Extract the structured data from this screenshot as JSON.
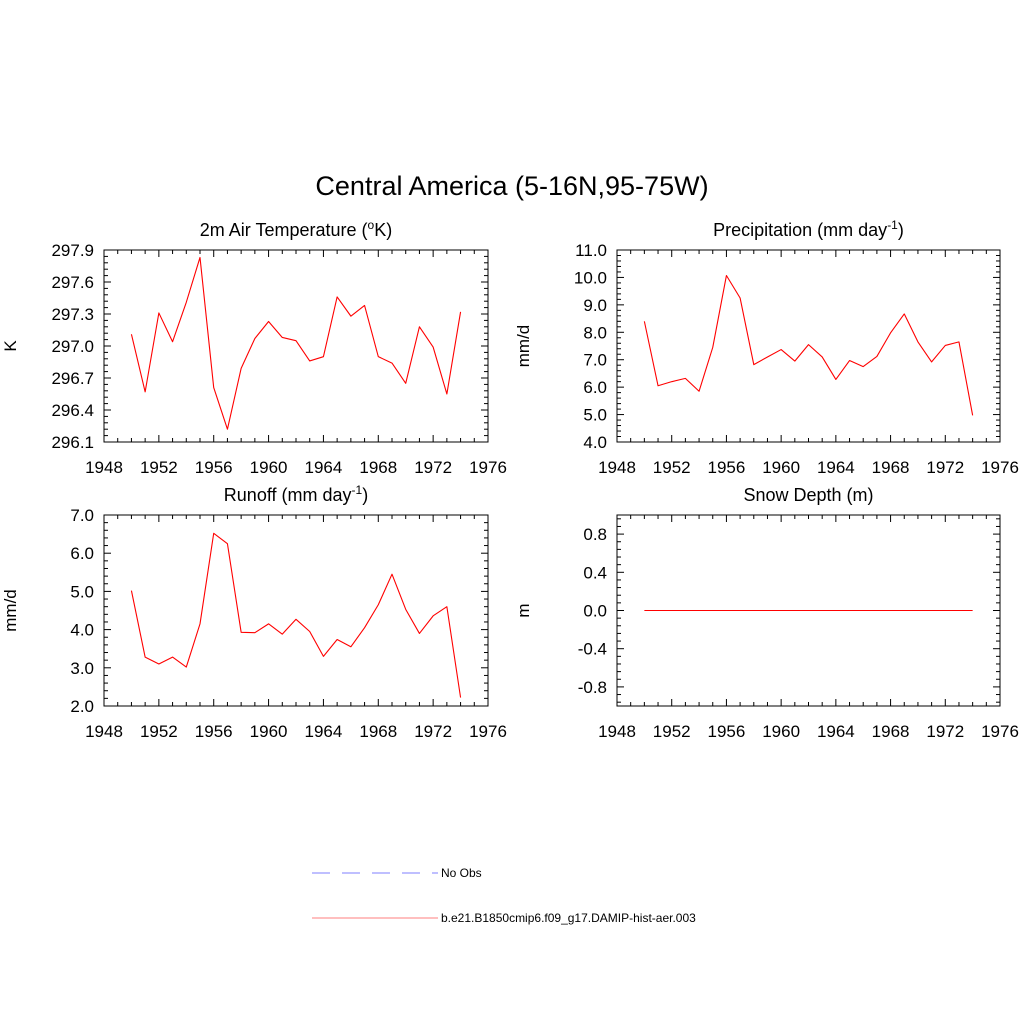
{
  "figure": {
    "title": "Central America (5-16N,95-75W)"
  },
  "legend": {
    "items": [
      {
        "label": "No Obs",
        "color": "#9999ff",
        "style": "dashed"
      },
      {
        "label": "b.e21.B1850cmip6.f09_g17.DAMIP-hist-aer.003",
        "color": "#ff9999",
        "style": "solid"
      }
    ]
  },
  "chart_data": [
    {
      "type": "line",
      "title": "2m Air Temperature (",
      "title_sup": "o",
      "title_after": "K)",
      "ylabel": "K",
      "xlim": [
        1948,
        1976
      ],
      "ylim": [
        296.1,
        297.9
      ],
      "x_ticks": [
        "1948",
        "1952",
        "1956",
        "1960",
        "1964",
        "1968",
        "1972",
        "1976"
      ],
      "y_ticks": [
        "296.1",
        "296.4",
        "296.7",
        "297.0",
        "297.3",
        "297.6",
        "297.9"
      ],
      "series": [
        {
          "color": "#ff0000",
          "x": [
            1950,
            1951,
            1952,
            1953,
            1954,
            1955,
            1956,
            1957,
            1958,
            1959,
            1960,
            1961,
            1962,
            1963,
            1964,
            1965,
            1966,
            1967,
            1968,
            1969,
            1970,
            1971,
            1972,
            1973,
            1974
          ],
          "y": [
            297.11,
            296.57,
            297.31,
            297.04,
            297.41,
            297.83,
            296.61,
            296.22,
            296.79,
            297.07,
            297.23,
            297.08,
            297.05,
            296.86,
            296.9,
            297.46,
            297.28,
            297.38,
            296.9,
            296.84,
            296.65,
            297.18,
            296.99,
            296.55,
            297.32
          ]
        }
      ]
    },
    {
      "type": "line",
      "title": "Precipitation (mm day",
      "title_sup": "-1",
      "title_after": ")",
      "ylabel": "mm/d",
      "xlim": [
        1948,
        1976
      ],
      "ylim": [
        4.0,
        11.0
      ],
      "x_ticks": [
        "1948",
        "1952",
        "1956",
        "1960",
        "1964",
        "1968",
        "1972",
        "1976"
      ],
      "y_ticks": [
        "4.0",
        "5.0",
        "6.0",
        "7.0",
        "8.0",
        "9.0",
        "10.0",
        "11.0"
      ],
      "series": [
        {
          "color": "#ff0000",
          "x": [
            1950,
            1951,
            1952,
            1953,
            1954,
            1955,
            1956,
            1957,
            1958,
            1959,
            1960,
            1961,
            1962,
            1963,
            1964,
            1965,
            1966,
            1967,
            1968,
            1969,
            1970,
            1971,
            1972,
            1973,
            1974
          ],
          "y": [
            8.4,
            6.05,
            6.2,
            6.32,
            5.85,
            7.45,
            10.07,
            9.25,
            6.82,
            7.1,
            7.37,
            6.95,
            7.55,
            7.1,
            6.28,
            6.97,
            6.75,
            7.12,
            7.98,
            8.67,
            7.65,
            6.92,
            7.52,
            7.65,
            4.97
          ]
        }
      ]
    },
    {
      "type": "line",
      "title": "Runoff (mm day",
      "title_sup": "-1",
      "title_after": ")",
      "ylabel": "mm/d",
      "xlim": [
        1948,
        1976
      ],
      "ylim": [
        2.0,
        7.0
      ],
      "x_ticks": [
        "1948",
        "1952",
        "1956",
        "1960",
        "1964",
        "1968",
        "1972",
        "1976"
      ],
      "y_ticks": [
        "2.0",
        "3.0",
        "4.0",
        "5.0",
        "6.0",
        "7.0"
      ],
      "series": [
        {
          "color": "#ff0000",
          "x": [
            1950,
            1951,
            1952,
            1953,
            1954,
            1955,
            1956,
            1957,
            1958,
            1959,
            1960,
            1961,
            1962,
            1963,
            1964,
            1965,
            1966,
            1967,
            1968,
            1969,
            1970,
            1971,
            1972,
            1973,
            1974
          ],
          "y": [
            5.02,
            3.28,
            3.1,
            3.28,
            3.02,
            4.15,
            6.52,
            6.25,
            3.93,
            3.92,
            4.15,
            3.88,
            4.27,
            3.95,
            3.3,
            3.74,
            3.55,
            4.05,
            4.65,
            5.45,
            4.53,
            3.9,
            4.36,
            4.6,
            2.22
          ]
        }
      ]
    },
    {
      "type": "line",
      "title": "Snow Depth (m)",
      "title_sup": "",
      "title_after": "",
      "ylabel": "m",
      "xlim": [
        1948,
        1976
      ],
      "ylim": [
        -1.0,
        1.0
      ],
      "x_ticks": [
        "1948",
        "1952",
        "1956",
        "1960",
        "1964",
        "1968",
        "1972",
        "1976"
      ],
      "y_ticks": [
        "-0.8",
        "-0.4",
        "0.0",
        "0.4",
        "0.8"
      ],
      "series": [
        {
          "color": "#ff0000",
          "x": [
            1950,
            1951,
            1952,
            1953,
            1954,
            1955,
            1956,
            1957,
            1958,
            1959,
            1960,
            1961,
            1962,
            1963,
            1964,
            1965,
            1966,
            1967,
            1968,
            1969,
            1970,
            1971,
            1972,
            1973,
            1974
          ],
          "y": [
            0,
            0,
            0,
            0,
            0,
            0,
            0,
            0,
            0,
            0,
            0,
            0,
            0,
            0,
            0,
            0,
            0,
            0,
            0,
            0,
            0,
            0,
            0,
            0,
            0
          ]
        }
      ]
    }
  ]
}
